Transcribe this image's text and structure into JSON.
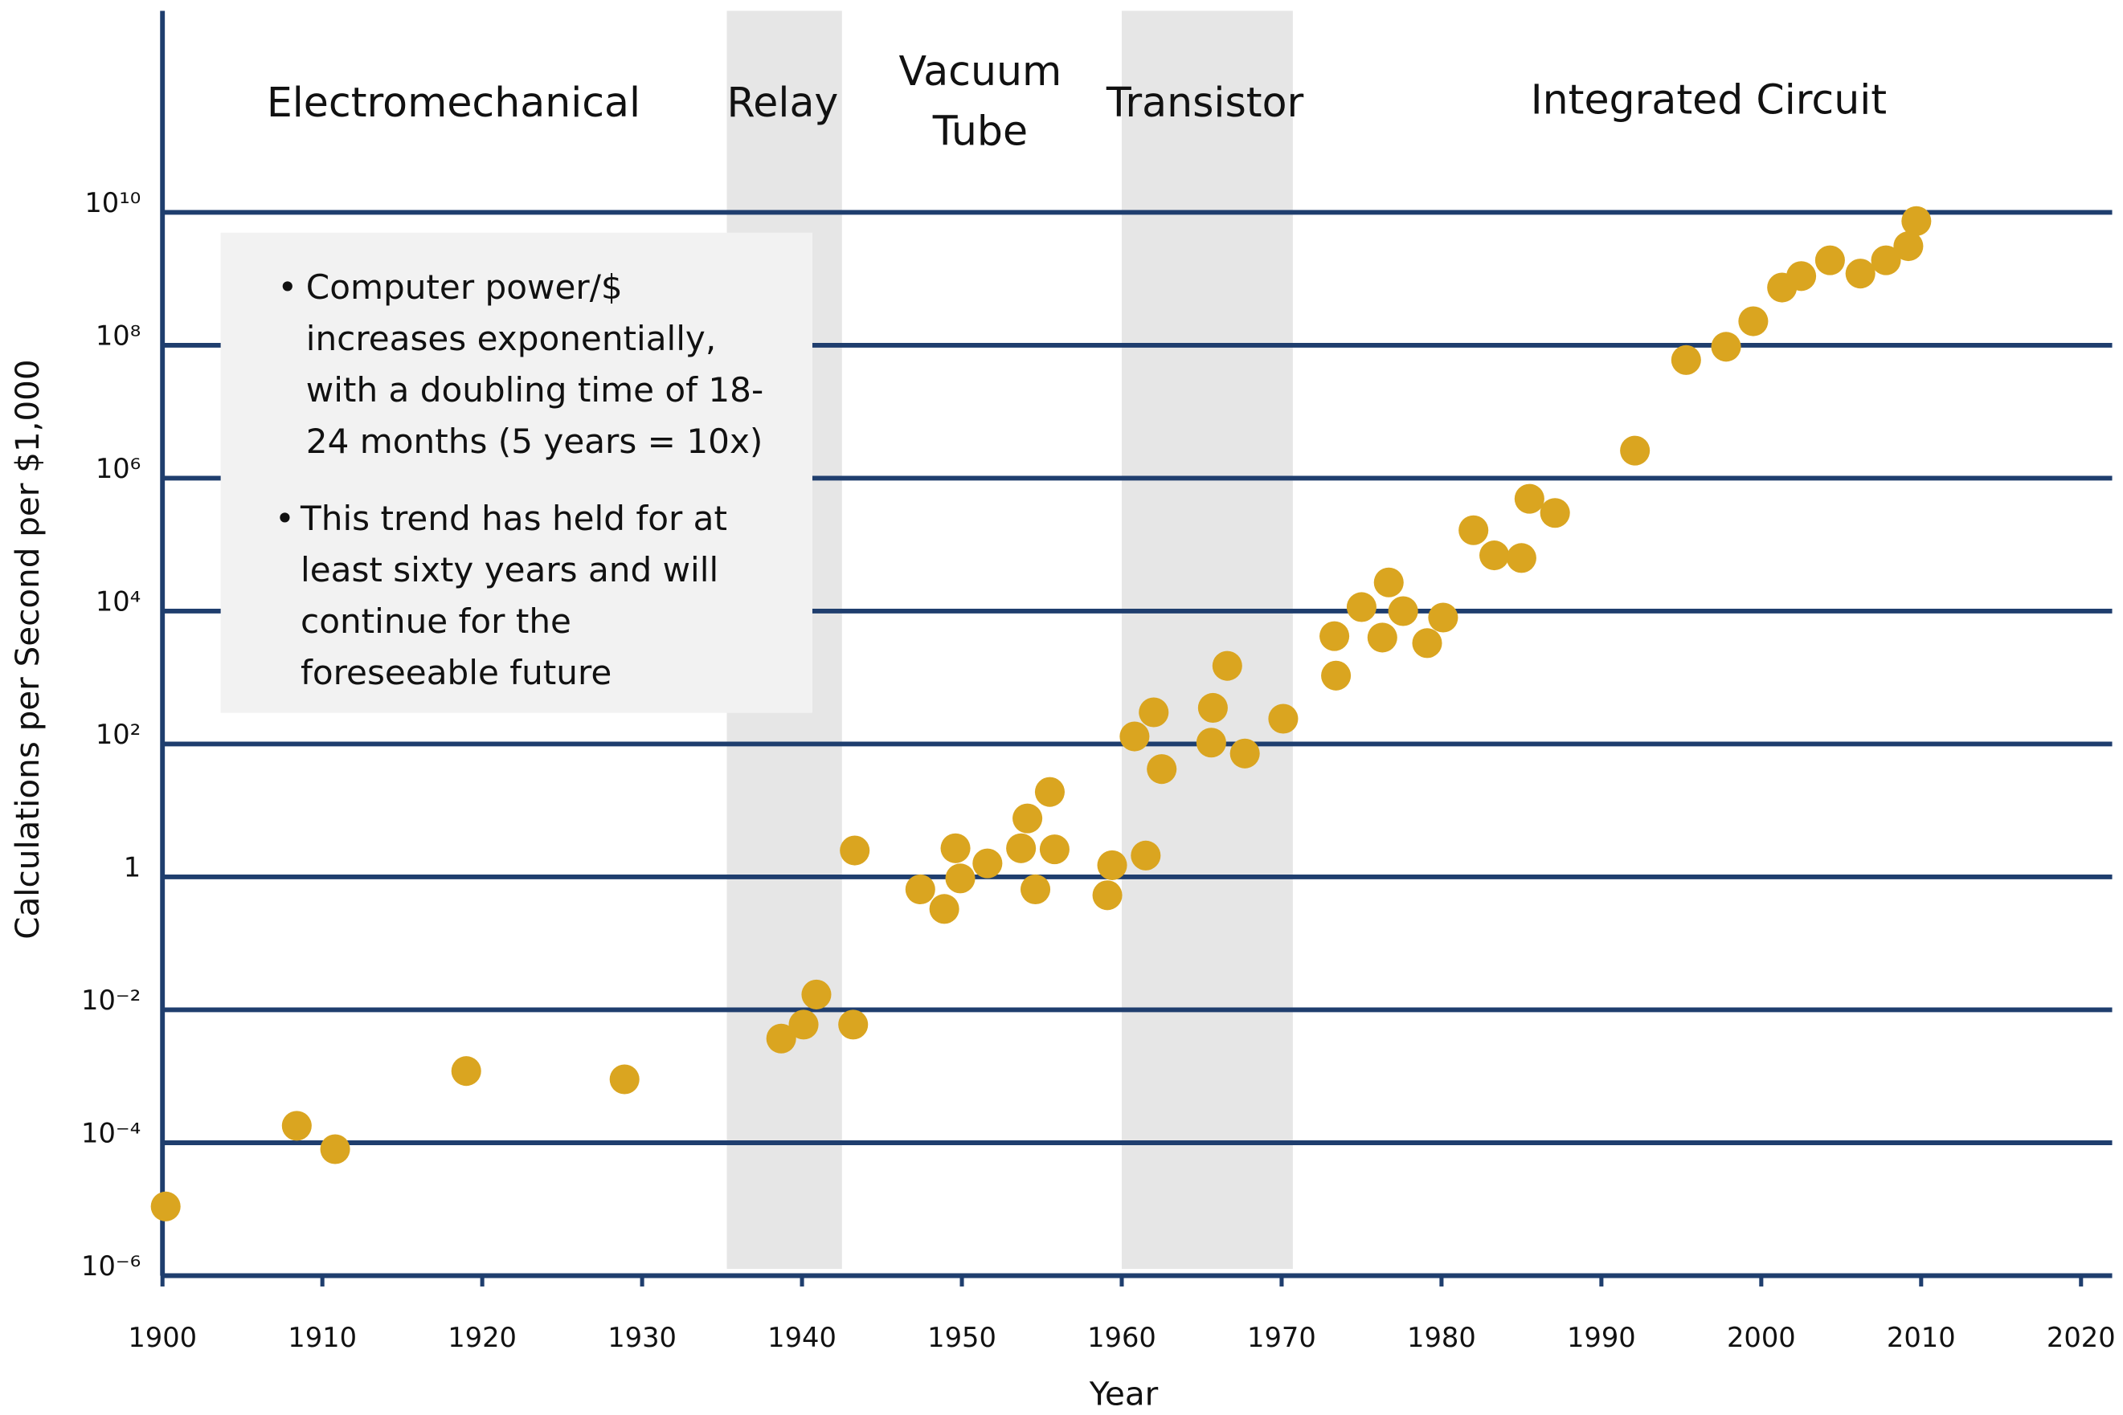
{
  "chart_data": {
    "type": "scatter",
    "x_label": "Year",
    "y_label": "Calculations per Second per $1,000",
    "log_y": true,
    "grid": true,
    "color": "#daa520",
    "xlim": [
      1900,
      2020
    ],
    "xticks": [
      1900,
      1910,
      1920,
      1930,
      1940,
      1950,
      1960,
      1970,
      1980,
      1990,
      2000,
      2010,
      2020
    ],
    "ylim": [
      1e-06,
      10000000000
    ],
    "yticks": [
      {
        "value": 1e-06,
        "label": "10⁻⁶"
      },
      {
        "value": 0.0001,
        "label": "10⁻⁴"
      },
      {
        "value": 0.01,
        "label": "10⁻²"
      },
      1,
      {
        "value": 100,
        "label": "10²"
      },
      {
        "value": 10000,
        "label": "10⁴"
      },
      {
        "value": 1000000,
        "label": "10⁶"
      },
      {
        "value": 100000000,
        "label": "10⁸"
      },
      {
        "value": 10000000000,
        "label": "10¹⁰"
      }
    ],
    "eras": [
      {
        "label": [
          "Electromechanical"
        ]
      },
      {
        "label": [
          "Relay"
        ],
        "span": [
          1935.3,
          1942.5
        ]
      },
      {
        "label": [
          "Vacuum",
          "Tube"
        ]
      },
      {
        "label": [
          "Transistor"
        ],
        "span": [
          1960,
          1970.7
        ]
      },
      {
        "label": [
          "Integrated Circuit"
        ]
      }
    ],
    "note": [
      [
        "Computer power/$",
        "increases exponentially,",
        "with a doubling time of 18-",
        "24 months (5 years = 10x)"
      ],
      [
        "This trend has held for at",
        "least sixty years and will",
        "continue for the",
        "foreseeable future"
      ]
    ],
    "x": [
      1900.2,
      1908.4,
      1910.8,
      1919,
      1928.9,
      1938.7,
      1940.1,
      1940.9,
      1943.2,
      1943.3,
      1947.4,
      1948.9,
      1949.6,
      1949.9,
      1951.6,
      1953.7,
      1954.1,
      1954.6,
      1955.5,
      1955.8,
      1959.1,
      1959.4,
      1960.8,
      1961.5,
      1962,
      1962.5,
      1965.7,
      1965.6,
      1966.6,
      1967.7,
      1970.1,
      1973.3,
      1973.4,
      1975,
      1976.3,
      1976.7,
      1977.6,
      1979.1,
      1980.1,
      1982,
      1983.3,
      1985,
      1985.5,
      1987.1,
      1992.1,
      1995.3,
      1997.8,
      1999.5,
      2001.3,
      2002.5,
      2004.3,
      2006.2,
      2007.8,
      2009.2,
      2009.7
    ],
    "values": [
      1.1e-05,
      0.00018,
      8e-05,
      0.0012,
      0.0009,
      0.0037,
      0.006,
      0.017,
      0.006,
      2.5,
      0.65,
      0.33,
      2.7,
      0.95,
      1.6,
      2.7,
      7.6,
      0.65,
      19,
      2.6,
      0.53,
      1.5,
      130,
      2.1,
      300,
      42,
      350,
      105,
      1500,
      72,
      240,
      4200,
      1070,
      11500,
      4000,
      27000,
      10000,
      3300,
      8000,
      165000,
      69000,
      63000,
      490000,
      300000,
      2600000,
      60000000,
      95000000,
      230000000,
      740000000,
      1100000000,
      1900000000,
      1200000000,
      1900000000,
      3100000000,
      7400000000
    ]
  }
}
